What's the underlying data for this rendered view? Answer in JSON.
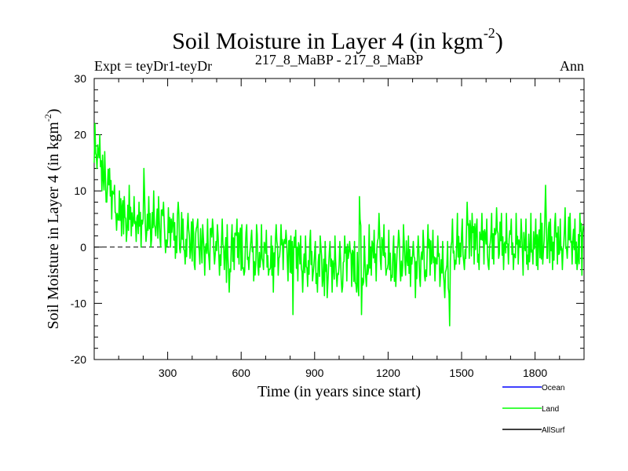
{
  "chart_data": {
    "type": "line",
    "title": "Soil Moisture in Layer 4 (in kgm",
    "title_sup": "-2",
    "title_close": ")",
    "subtitle_left": "Expt = teyDr1-teyDr",
    "subtitle_center": "217_8_MaBP - 217_8_MaBP",
    "subtitle_right": "Ann",
    "xlabel": "Time (in years since start)",
    "ylabel": "Soil Moisture in Layer 4 (in kgm",
    "ylabel_sup": "-2",
    "ylabel_close": ")",
    "xlim": [
      0,
      2000
    ],
    "ylim": [
      -20,
      30
    ],
    "xticks": [
      300,
      600,
      900,
      1200,
      1500,
      1800
    ],
    "xtick_labels": [
      "300",
      "600",
      "900",
      "1200",
      "1500",
      "1800"
    ],
    "yticks": [
      -20,
      -10,
      0,
      10,
      20,
      30
    ],
    "ytick_labels": [
      "-20",
      "-10",
      "0",
      "10",
      "20",
      "30"
    ],
    "zero_line": 0,
    "series": [
      {
        "name": "Ocean",
        "color": "#0000ff",
        "values": []
      },
      {
        "name": "Land",
        "color": "#00ff00",
        "x_start": 0,
        "x_step": 20,
        "values": [
          18,
          14,
          11,
          9,
          7,
          6,
          5,
          6,
          5,
          4,
          5,
          4,
          6,
          4,
          3,
          4,
          2,
          3,
          1,
          2,
          0,
          1,
          -1,
          0,
          1,
          -1,
          0,
          -2,
          0,
          1,
          -1,
          0,
          -2,
          -1,
          0,
          -1,
          -3,
          -1,
          0,
          -2,
          -3,
          -2,
          -4,
          -3,
          -2,
          -4,
          -3,
          -5,
          -4,
          -3,
          -4,
          -2,
          -3,
          -4,
          -2,
          -3,
          -1,
          -2,
          0,
          -1,
          -2,
          -3,
          -2,
          -1,
          -3,
          -4,
          -3,
          -2,
          -1,
          -2,
          -3,
          -5,
          -4,
          0,
          1,
          0,
          2,
          1,
          0,
          1,
          0,
          1,
          2,
          0,
          1,
          0,
          1,
          -1,
          0,
          1,
          0,
          1,
          2,
          0,
          1,
          0,
          2,
          1,
          0,
          1
        ],
        "upper": [
          22,
          20,
          17,
          14,
          11,
          10,
          9,
          11,
          9,
          8,
          14,
          9,
          10,
          9,
          8,
          7,
          6,
          8,
          5,
          6,
          5,
          5,
          4,
          5,
          5,
          4,
          5,
          4,
          4,
          5,
          4,
          4,
          3,
          4,
          4,
          3,
          2,
          4,
          4,
          3,
          2,
          3,
          2,
          2,
          3,
          1,
          2,
          1,
          1,
          2,
          1,
          2,
          1,
          1,
          9,
          2,
          4,
          3,
          6,
          4,
          3,
          2,
          3,
          4,
          2,
          1,
          2,
          3,
          4,
          3,
          2,
          1,
          1,
          5,
          6,
          5,
          8,
          6,
          5,
          6,
          5,
          6,
          7,
          6,
          6,
          5,
          6,
          5,
          5,
          6,
          5,
          6,
          11,
          5,
          6,
          5,
          7,
          6,
          5,
          6
        ],
        "lower": [
          14,
          10,
          8,
          5,
          3,
          2,
          1,
          2,
          1,
          0,
          1,
          0,
          2,
          0,
          -1,
          0,
          -2,
          -1,
          -3,
          -2,
          -4,
          -3,
          -5,
          -4,
          -3,
          -5,
          -4,
          -8,
          -4,
          -3,
          -5,
          -4,
          -6,
          -5,
          -4,
          -5,
          -8,
          -5,
          -4,
          -6,
          -12,
          -6,
          -8,
          -7,
          -6,
          -8,
          -7,
          -9,
          -8,
          -7,
          -8,
          -6,
          -7,
          -8,
          -12,
          -7,
          -5,
          -6,
          -4,
          -5,
          -6,
          -7,
          -6,
          -5,
          -7,
          -9,
          -7,
          -6,
          -5,
          -6,
          -7,
          -9,
          -14,
          -4,
          -3,
          -4,
          -2,
          -3,
          -4,
          -3,
          -4,
          -3,
          -2,
          -4,
          -3,
          -4,
          -3,
          -5,
          -4,
          -3,
          -4,
          -3,
          -2,
          -4,
          -3,
          -4,
          -2,
          -3,
          -4,
          -5
        ]
      },
      {
        "name": "AllSurf",
        "color": "#000000",
        "values": []
      }
    ],
    "legend_position": "bottom-right"
  }
}
